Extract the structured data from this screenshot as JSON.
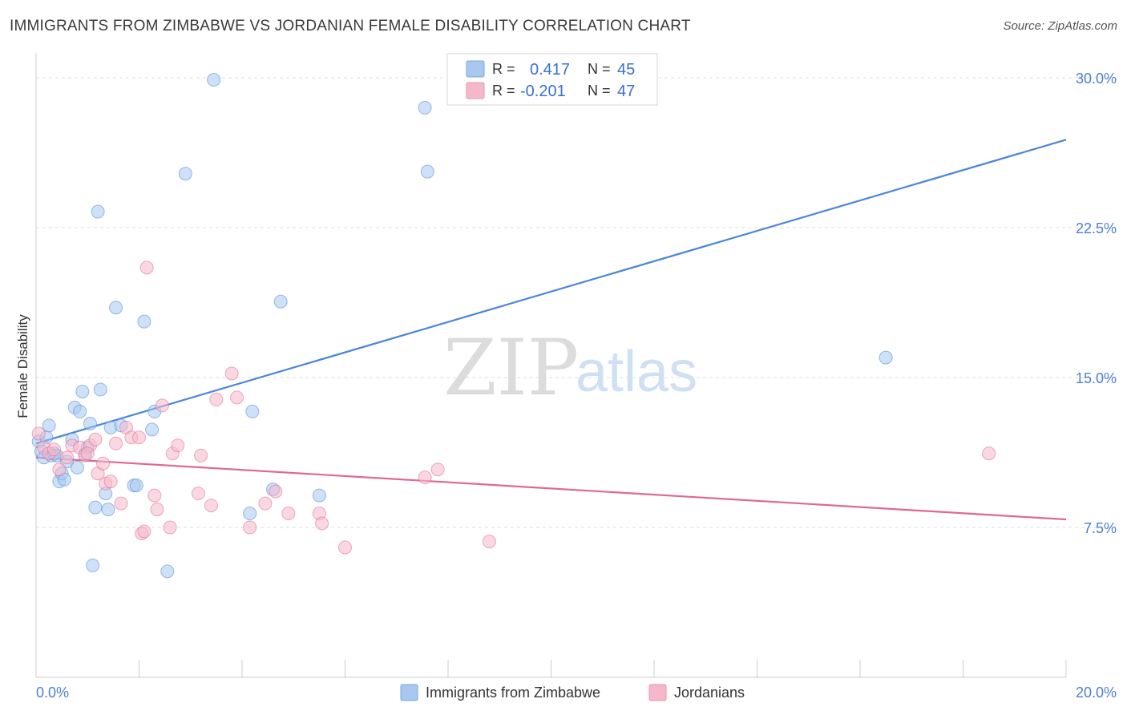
{
  "header": {
    "title": "IMMIGRANTS FROM ZIMBABWE VS JORDANIAN FEMALE DISABILITY CORRELATION CHART",
    "source": "Source: ZipAtlas.com"
  },
  "watermark": {
    "zip": "ZIP",
    "atlas": "atlas"
  },
  "stats_legend": {
    "rows": [
      {
        "r_label": "R =",
        "r_value": "0.417",
        "n_label": "N =",
        "n_value": "45",
        "color": "#a8c8f0"
      },
      {
        "r_label": "R =",
        "r_value": "-0.201",
        "n_label": "N =",
        "n_value": "47",
        "color": "#f5b8cb"
      }
    ]
  },
  "chart_data": {
    "type": "scatter",
    "title": "IMMIGRANTS FROM ZIMBABWE VS JORDANIAN FEMALE DISABILITY CORRELATION CHART",
    "xlabel": "",
    "ylabel": "Female Disability",
    "xlim": [
      0,
      20
    ],
    "ylim": [
      0,
      30.5
    ],
    "x_tick_labels": [
      "0.0%",
      "20.0%"
    ],
    "y_ticks": [
      7.5,
      15.0,
      22.5,
      30.0
    ],
    "y_tick_labels": [
      "7.5%",
      "15.0%",
      "22.5%",
      "30.0%"
    ],
    "grid": true,
    "legend_position": "bottom",
    "series": [
      {
        "name": "Immigrants from Zimbabwe",
        "color": "#4a86d8",
        "fill": "#a8c8f0",
        "trend": {
          "x": [
            0,
            20
          ],
          "y": [
            11.7,
            26.9
          ]
        },
        "points": [
          [
            0.05,
            11.8
          ],
          [
            0.1,
            11.3
          ],
          [
            0.15,
            11.0
          ],
          [
            0.2,
            12.0
          ],
          [
            0.25,
            12.6
          ],
          [
            0.3,
            11.1
          ],
          [
            0.35,
            11.2
          ],
          [
            0.45,
            9.8
          ],
          [
            0.5,
            10.2
          ],
          [
            0.55,
            9.9
          ],
          [
            0.6,
            10.8
          ],
          [
            0.7,
            11.9
          ],
          [
            0.75,
            13.5
          ],
          [
            0.8,
            10.5
          ],
          [
            0.85,
            13.3
          ],
          [
            0.9,
            14.3
          ],
          [
            0.95,
            11.2
          ],
          [
            1.0,
            11.5
          ],
          [
            1.05,
            12.7
          ],
          [
            1.15,
            8.5
          ],
          [
            1.2,
            23.3
          ],
          [
            1.25,
            14.4
          ],
          [
            1.35,
            9.2
          ],
          [
            1.4,
            8.4
          ],
          [
            1.45,
            12.5
          ],
          [
            1.55,
            18.5
          ],
          [
            1.65,
            12.6
          ],
          [
            1.9,
            9.6
          ],
          [
            1.95,
            9.6
          ],
          [
            2.1,
            17.8
          ],
          [
            2.25,
            12.4
          ],
          [
            2.3,
            13.3
          ],
          [
            2.55,
            5.3
          ],
          [
            2.9,
            25.2
          ],
          [
            3.45,
            29.9
          ],
          [
            4.15,
            8.2
          ],
          [
            4.2,
            13.3
          ],
          [
            4.6,
            9.4
          ],
          [
            4.75,
            18.8
          ],
          [
            5.5,
            9.1
          ],
          [
            7.55,
            28.5
          ],
          [
            7.6,
            25.3
          ],
          [
            16.5,
            16.0
          ],
          [
            1.1,
            5.6
          ],
          [
            0.4,
            11.1
          ]
        ]
      },
      {
        "name": "Jordanians",
        "color": "#e0688f",
        "fill": "#f5b8cb",
        "trend": {
          "x": [
            0,
            20
          ],
          "y": [
            11.0,
            7.9
          ]
        },
        "points": [
          [
            0.05,
            12.2
          ],
          [
            0.15,
            11.5
          ],
          [
            0.25,
            11.2
          ],
          [
            0.35,
            11.4
          ],
          [
            0.45,
            10.4
          ],
          [
            0.6,
            11.0
          ],
          [
            0.7,
            11.6
          ],
          [
            0.85,
            11.5
          ],
          [
            0.95,
            11.1
          ],
          [
            1.05,
            11.6
          ],
          [
            1.15,
            11.9
          ],
          [
            1.2,
            10.2
          ],
          [
            1.3,
            10.7
          ],
          [
            1.35,
            9.7
          ],
          [
            1.45,
            9.8
          ],
          [
            1.55,
            11.7
          ],
          [
            1.65,
            8.7
          ],
          [
            1.75,
            12.5
          ],
          [
            1.85,
            12.0
          ],
          [
            2.0,
            12.0
          ],
          [
            2.05,
            7.2
          ],
          [
            2.1,
            7.3
          ],
          [
            2.15,
            20.5
          ],
          [
            2.3,
            9.1
          ],
          [
            2.35,
            8.4
          ],
          [
            2.45,
            13.6
          ],
          [
            2.6,
            7.5
          ],
          [
            2.65,
            11.2
          ],
          [
            2.75,
            11.6
          ],
          [
            3.15,
            9.2
          ],
          [
            3.2,
            11.1
          ],
          [
            3.4,
            8.6
          ],
          [
            3.5,
            13.9
          ],
          [
            3.8,
            15.2
          ],
          [
            3.9,
            14.0
          ],
          [
            4.15,
            7.5
          ],
          [
            4.45,
            8.7
          ],
          [
            4.65,
            9.3
          ],
          [
            4.9,
            8.2
          ],
          [
            5.5,
            8.2
          ],
          [
            5.55,
            7.7
          ],
          [
            6.0,
            6.5
          ],
          [
            7.55,
            10.0
          ],
          [
            7.8,
            10.4
          ],
          [
            8.8,
            6.8
          ],
          [
            18.5,
            11.2
          ],
          [
            1.0,
            11.2
          ]
        ]
      }
    ]
  }
}
